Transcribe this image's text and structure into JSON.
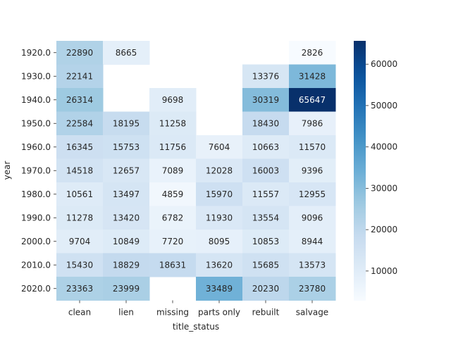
{
  "chart_data": {
    "type": "heatmap",
    "xlabel": "title_status",
    "ylabel": "year",
    "categories": [
      "clean",
      "lien",
      "missing",
      "parts only",
      "rebuilt",
      "salvage"
    ],
    "rows": [
      "1920.0",
      "1930.0",
      "1940.0",
      "1950.0",
      "1960.0",
      "1970.0",
      "1980.0",
      "1990.0",
      "2000.0",
      "2010.0",
      "2020.0"
    ],
    "values": [
      [
        22890,
        8665,
        null,
        null,
        null,
        2826
      ],
      [
        22141,
        null,
        null,
        null,
        13376,
        31428
      ],
      [
        26314,
        null,
        9698,
        null,
        30319,
        65647
      ],
      [
        22584,
        18195,
        11258,
        null,
        18430,
        7986
      ],
      [
        16345,
        15753,
        11756,
        7604,
        10663,
        11570
      ],
      [
        14518,
        12657,
        7089,
        12028,
        16003,
        9396
      ],
      [
        10561,
        13497,
        4859,
        15970,
        11557,
        12955
      ],
      [
        11278,
        13420,
        6782,
        11930,
        13554,
        9096
      ],
      [
        9704,
        10849,
        7720,
        8095,
        10853,
        8944
      ],
      [
        15430,
        18829,
        18631,
        13620,
        15685,
        13573
      ],
      [
        23363,
        23999,
        null,
        33489,
        20230,
        23780
      ]
    ],
    "colorbar": {
      "colormap": "Blues",
      "vmin": 2826,
      "vmax": 65647,
      "ticks": [
        10000,
        20000,
        30000,
        40000,
        50000,
        60000
      ],
      "tick_labels": [
        "10000",
        "20000",
        "30000",
        "40000",
        "50000",
        "60000"
      ]
    },
    "grid": false
  }
}
